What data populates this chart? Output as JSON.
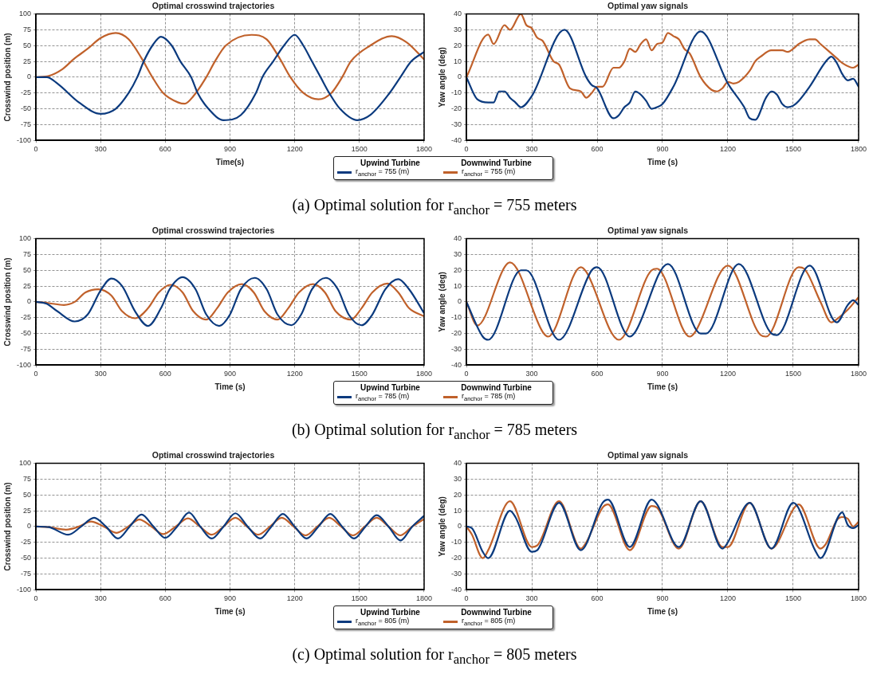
{
  "chart_data": [
    {
      "type": "line",
      "title": "Optimal crosswind trajectories",
      "xlabel": "Time(s)",
      "ylabel": "Crosswind position (m)",
      "xlim": [
        0,
        1800
      ],
      "ylim": [
        -100,
        100
      ],
      "xticks": [
        0,
        300,
        600,
        900,
        1200,
        1500,
        1800
      ],
      "yticks": [
        -100,
        -75,
        -50,
        -25,
        0,
        25,
        50,
        75,
        100
      ],
      "grid": true,
      "legend": "bottom",
      "marker": "none",
      "line_style": "solid",
      "annotations": [
        "Upwind Turbine",
        "Downwind Turbine",
        "(a) Optimal solution for r$_{anchor}$ = 755 meters"
      ],
      "series": [
        {
          "name": "r$_{anchor}$ = 755 (m)",
          "color": "#0b3a7e",
          "x": [
            0,
            50,
            100,
            200,
            300,
            370,
            430,
            470,
            500,
            540,
            580,
            630,
            670,
            720,
            750,
            800,
            870,
            950,
            1020,
            1050,
            1100,
            1150,
            1200,
            1240,
            1280,
            1320,
            1360,
            1410,
            1490,
            1550,
            1640,
            1690,
            1740,
            1800
          ],
          "values": [
            0,
            0,
            -10,
            -40,
            -58,
            -50,
            -25,
            0,
            25,
            50,
            64,
            50,
            25,
            0,
            -25,
            -50,
            -68,
            -60,
            -25,
            0,
            25,
            50,
            67,
            50,
            25,
            0,
            -25,
            -50,
            -68,
            -60,
            -25,
            0,
            25,
            40
          ]
        },
        {
          "name": "r$_{anchor}$ = 755 (m)",
          "color": "#c0612b",
          "x": [
            0,
            60,
            120,
            180,
            240,
            300,
            370,
            430,
            490,
            540,
            590,
            660,
            690,
            730,
            790,
            830,
            880,
            1000,
            1070,
            1130,
            1180,
            1240,
            1310,
            1370,
            1420,
            1460,
            1550,
            1650,
            1720,
            1800
          ],
          "values": [
            0,
            2,
            12,
            30,
            45,
            62,
            70,
            60,
            30,
            0,
            -25,
            -40,
            -42,
            -30,
            0,
            25,
            50,
            67,
            60,
            30,
            0,
            -25,
            -35,
            -25,
            0,
            25,
            50,
            65,
            55,
            28
          ]
        }
      ]
    },
    {
      "type": "line",
      "title": "Optimal yaw signals",
      "xlabel": "Time (s)",
      "ylabel": "Yaw angle (deg)",
      "xlim": [
        0,
        1800
      ],
      "ylim": [
        -40,
        40
      ],
      "xticks": [
        0,
        300,
        600,
        900,
        1200,
        1500,
        1800
      ],
      "yticks": [
        -40,
        -30,
        -20,
        -10,
        0,
        10,
        20,
        30,
        40
      ],
      "grid": true,
      "marker": "none",
      "line_style": "solid",
      "series": [
        {
          "color": "#0b3a7e",
          "x": [
            0,
            50,
            100,
            125,
            150,
            175,
            200,
            225,
            250,
            300,
            450,
            550,
            575,
            600,
            675,
            700,
            725,
            750,
            775,
            800,
            825,
            850,
            875,
            900,
            950,
            1075,
            1200,
            1275,
            1300,
            1325,
            1375,
            1400,
            1425,
            1450,
            1475,
            1500,
            1525,
            1575,
            1650,
            1675,
            1700,
            1725,
            1750,
            1775,
            1800
          ],
          "values": [
            0,
            -14,
            -16,
            -16,
            -9,
            -9,
            -13,
            -16,
            -19,
            -12,
            30,
            0,
            -5,
            -7,
            -26,
            -24,
            -19,
            -16,
            -9,
            -11,
            -15,
            -20,
            -19,
            -17,
            -6,
            29,
            -4,
            -19,
            -26,
            -27,
            -13,
            -9,
            -11,
            -17,
            -19,
            -18,
            -15,
            -6,
            10,
            13,
            9,
            2,
            -2,
            -1,
            -6
          ]
        },
        {
          "color": "#c0612b",
          "x": [
            0,
            100,
            125,
            175,
            200,
            250,
            275,
            300,
            325,
            350,
            400,
            425,
            475,
            525,
            550,
            575,
            600,
            625,
            675,
            700,
            725,
            750,
            775,
            800,
            825,
            850,
            875,
            900,
            925,
            950,
            975,
            1000,
            1025,
            1075,
            1125,
            1150,
            1175,
            1200,
            1225,
            1250,
            1300,
            1325,
            1350,
            1400,
            1425,
            1450,
            1475,
            1500,
            1525,
            1575,
            1600,
            1625,
            1700,
            1725,
            1775,
            1800
          ],
          "values": [
            0,
            27,
            21,
            33,
            30,
            40,
            33,
            31,
            25,
            23,
            10,
            8,
            -7,
            -9,
            -13,
            -10,
            -6,
            -6,
            6,
            6,
            10,
            18,
            16,
            21,
            24,
            17,
            21,
            22,
            28,
            26,
            24,
            18,
            15,
            0,
            -8,
            -9,
            -7,
            -3,
            -4,
            -3,
            4,
            10,
            13,
            17,
            17,
            17,
            16,
            18,
            21,
            24,
            24,
            21,
            12,
            9,
            6,
            8
          ]
        }
      ]
    },
    {
      "type": "line",
      "title": "Optimal crosswind trajectories",
      "xlabel": "Time (s)",
      "ylabel": "Crosswind position (m)",
      "xlim": [
        0,
        1800
      ],
      "ylim": [
        -100,
        100
      ],
      "xticks": [
        0,
        300,
        600,
        900,
        1200,
        1500,
        1800
      ],
      "yticks": [
        -100,
        -75,
        -50,
        -25,
        0,
        25,
        50,
        75,
        100
      ],
      "grid": true,
      "legend": "bottom",
      "marker": "none",
      "line_style": "solid",
      "annotations": [
        "Upwind Turbine",
        "Downwind Turbine",
        "(b) Optimal solution for r$_{anchor}$ = 785 meters"
      ],
      "series": [
        {
          "name": "r$_{anchor}$ = 785 (m)",
          "color": "#0b3a7e",
          "x": [
            0,
            50,
            100,
            180,
            240,
            300,
            350,
            400,
            460,
            520,
            580,
            620,
            680,
            740,
            790,
            850,
            900,
            950,
            1015,
            1070,
            1120,
            1185,
            1230,
            1280,
            1345,
            1400,
            1450,
            1510,
            1560,
            1620,
            1680,
            1730,
            1800
          ],
          "values": [
            0,
            -3,
            -15,
            -31,
            -20,
            18,
            37,
            25,
            -15,
            -38,
            -10,
            20,
            39,
            20,
            -20,
            -38,
            -20,
            20,
            38,
            20,
            -20,
            -37,
            -20,
            20,
            38,
            20,
            -20,
            -37,
            -20,
            20,
            36,
            20,
            -18
          ]
        },
        {
          "name": "r$_{anchor}$ = 785 (m)",
          "color": "#c0612b",
          "x": [
            0,
            60,
            130,
            180,
            230,
            290,
            350,
            400,
            460,
            520,
            570,
            625,
            680,
            730,
            790,
            840,
            890,
            955,
            1010,
            1060,
            1120,
            1170,
            1220,
            1285,
            1340,
            1390,
            1460,
            1510,
            1560,
            1630,
            1680,
            1730,
            1800
          ],
          "values": [
            0,
            -2,
            -5,
            0,
            15,
            20,
            10,
            -15,
            -26,
            -10,
            15,
            27,
            15,
            -15,
            -28,
            -10,
            15,
            28,
            15,
            -15,
            -28,
            -10,
            15,
            28,
            15,
            -15,
            -28,
            -10,
            15,
            29,
            15,
            -10,
            -23
          ]
        }
      ]
    },
    {
      "type": "line",
      "title": "Optimal yaw signals",
      "xlabel": "Time (s)",
      "ylabel": "Yaw angle (deg)",
      "xlim": [
        0,
        1800
      ],
      "ylim": [
        -40,
        40
      ],
      "xticks": [
        0,
        300,
        600,
        900,
        1200,
        1500,
        1800
      ],
      "yticks": [
        -40,
        -30,
        -20,
        -10,
        0,
        10,
        20,
        30,
        40
      ],
      "grid": true,
      "marker": "none",
      "line_style": "solid",
      "series": [
        {
          "color": "#0b3a7e",
          "x": [
            0,
            75,
            100,
            250,
            275,
            425,
            575,
            600,
            750,
            775,
            925,
            1075,
            1100,
            1250,
            1400,
            1425,
            1575,
            1700,
            1750,
            1775,
            1800
          ],
          "values": [
            0,
            -22,
            -24,
            20,
            20,
            -24,
            20,
            22,
            -22,
            -19,
            24,
            -20,
            -20,
            24,
            -20,
            -21,
            23,
            -13,
            -2,
            1,
            -2
          ]
        },
        {
          "color": "#c0612b",
          "x": [
            0,
            50,
            175,
            200,
            350,
            375,
            525,
            550,
            700,
            850,
            875,
            1025,
            1050,
            1200,
            1350,
            1375,
            1525,
            1550,
            1625,
            1675,
            1700,
            1750,
            1800
          ],
          "values": [
            0,
            -15,
            22,
            25,
            -19,
            -22,
            22,
            19,
            -24,
            20,
            21,
            -22,
            -19,
            23,
            -21,
            -22,
            22,
            21,
            0,
            -13,
            -11,
            -5,
            3
          ]
        }
      ]
    },
    {
      "type": "line",
      "title": "Optimal crosswind trajectories",
      "xlabel": "Time (s)",
      "ylabel": "Crosswind position (m)",
      "xlim": [
        0,
        1800
      ],
      "ylim": [
        -100,
        100
      ],
      "xticks": [
        0,
        300,
        600,
        900,
        1200,
        1500,
        1800
      ],
      "yticks": [
        -100,
        -75,
        -50,
        -25,
        0,
        25,
        50,
        75,
        100
      ],
      "grid": true,
      "legend": "bottom",
      "marker": "none",
      "line_style": "solid",
      "annotations": [
        "Upwind Turbine",
        "Downwind Turbine",
        "(c) Optimal solution for r$_{anchor}$ = 805 meters"
      ],
      "series": [
        {
          "name": "r$_{anchor}$ = 805 (m)",
          "color": "#0b3a7e",
          "x": [
            0,
            60,
            150,
            210,
            270,
            325,
            380,
            435,
            490,
            545,
            600,
            655,
            710,
            762,
            815,
            870,
            925,
            982,
            1040,
            1092,
            1145,
            1200,
            1255,
            1310,
            1365,
            1420,
            1475,
            1528,
            1580,
            1635,
            1690,
            1745,
            1800
          ],
          "values": [
            0,
            -1,
            -13,
            0,
            14,
            0,
            -19,
            0,
            19,
            0,
            -18,
            0,
            22,
            0,
            -19,
            0,
            21,
            0,
            -19,
            0,
            20,
            0,
            -19,
            0,
            20,
            0,
            -19,
            0,
            18,
            0,
            -22,
            0,
            17
          ]
        },
        {
          "name": "r$_{anchor}$ = 805 (m)",
          "color": "#c0612b",
          "x": [
            0,
            60,
            140,
            200,
            255,
            315,
            375,
            428,
            480,
            535,
            590,
            648,
            705,
            760,
            815,
            870,
            925,
            978,
            1030,
            1085,
            1140,
            1195,
            1250,
            1305,
            1360,
            1415,
            1470,
            1525,
            1580,
            1635,
            1690,
            1745,
            1800
          ],
          "values": [
            0,
            -1,
            -5,
            0,
            8,
            0,
            -10,
            0,
            11,
            0,
            -12,
            0,
            13,
            0,
            -13,
            0,
            14,
            0,
            -13,
            0,
            14,
            0,
            -14,
            0,
            14,
            0,
            -14,
            0,
            14,
            0,
            -14,
            0,
            12
          ]
        }
      ]
    },
    {
      "type": "line",
      "title": "Optimal yaw signals",
      "xlabel": "Time (s)",
      "ylabel": "Yaw angle (deg)",
      "xlim": [
        0,
        1800
      ],
      "ylim": [
        -40,
        40
      ],
      "xticks": [
        0,
        300,
        600,
        900,
        1200,
        1500,
        1800
      ],
      "yticks": [
        -40,
        -30,
        -20,
        -10,
        0,
        10,
        20,
        30,
        40
      ],
      "grid": true,
      "marker": "none",
      "line_style": "solid",
      "series": [
        {
          "color": "#0b3a7e",
          "x": [
            0,
            25,
            75,
            100,
            200,
            225,
            300,
            325,
            425,
            525,
            625,
            650,
            750,
            850,
            875,
            975,
            1075,
            1175,
            1200,
            1275,
            1300,
            1400,
            1500,
            1600,
            1625,
            1725,
            1750,
            1775,
            1800
          ],
          "values": [
            0,
            -1,
            -16,
            -20,
            10,
            6,
            -16,
            -15,
            15,
            -15,
            15,
            17,
            -13,
            17,
            14,
            -13,
            16,
            -14,
            -10,
            12,
            15,
            -14,
            15,
            -15,
            -20,
            9,
            1,
            -1,
            1
          ]
        },
        {
          "color": "#c0612b",
          "x": [
            0,
            25,
            75,
            100,
            200,
            300,
            325,
            425,
            525,
            550,
            625,
            650,
            750,
            850,
            875,
            975,
            1075,
            1175,
            1200,
            1300,
            1400,
            1425,
            1500,
            1525,
            1625,
            1650,
            1700,
            1725,
            1750,
            1775,
            1800
          ],
          "values": [
            0,
            -5,
            -20,
            -15,
            16,
            -13,
            -12,
            16,
            -14,
            -10,
            12,
            14,
            -15,
            13,
            12,
            -14,
            16,
            -13,
            -13,
            15,
            -14,
            -11,
            11,
            14,
            -14,
            -11,
            4,
            6,
            5,
            0,
            3
          ]
        }
      ]
    }
  ]
}
